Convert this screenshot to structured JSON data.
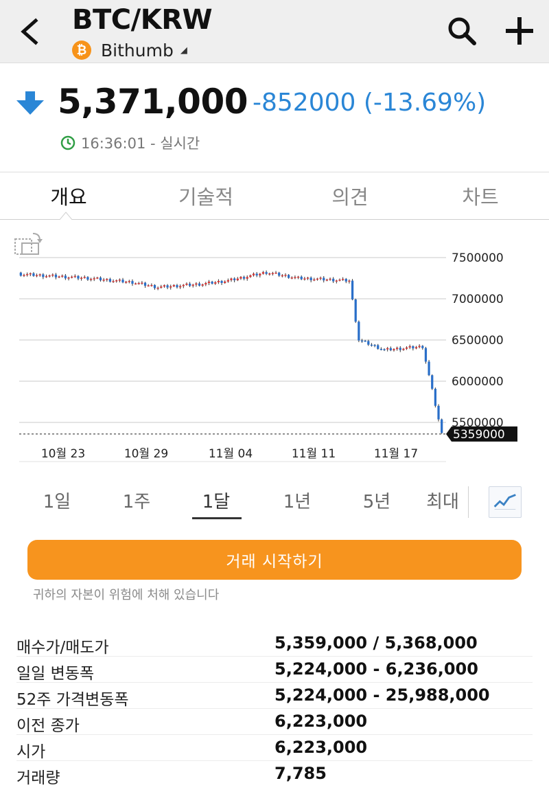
{
  "header": {
    "pair": "BTC/KRW",
    "coin_symbol": "₿",
    "exchange": "Bithumb",
    "icons": [
      "back-icon",
      "search-icon",
      "plus-icon",
      "dropdown-caret-icon"
    ]
  },
  "price": {
    "last": "5,371,000",
    "change": "-852000 (-13.69%)",
    "time": "16:36:01 - 실시간",
    "direction": "down",
    "down_color": "#2a86d6"
  },
  "tabs": [
    {
      "label": "개요",
      "active": true
    },
    {
      "label": "기술적",
      "active": false
    },
    {
      "label": "의견",
      "active": false
    },
    {
      "label": "차트",
      "active": false
    }
  ],
  "chart_data": {
    "type": "candlestick",
    "y_ticks": [
      "7500000",
      "7000000",
      "6500000",
      "6000000",
      "5500000"
    ],
    "x_ticks": [
      "10월 23",
      "10월 29",
      "11월 04",
      "11월 11",
      "11월 17"
    ],
    "ylim": [
      5300000,
      7500000
    ],
    "current_price_label": "5359000",
    "current_price": 5359000,
    "grid": true,
    "up_color": "#d93838",
    "down_color": "#2a6fc9",
    "segments": [
      {
        "from": 7300000,
        "to": 7250000,
        "n": 22
      },
      {
        "from": 7250000,
        "to": 7200000,
        "n": 14
      },
      {
        "from": 7200000,
        "to": 7140000,
        "n": 8
      },
      {
        "from": 7140000,
        "to": 7180000,
        "n": 14
      },
      {
        "from": 7180000,
        "to": 7220000,
        "n": 8
      },
      {
        "from": 7220000,
        "to": 7320000,
        "n": 12
      },
      {
        "from": 7320000,
        "to": 7250000,
        "n": 10
      },
      {
        "from": 7250000,
        "to": 7220000,
        "n": 16
      },
      {
        "from": 7220000,
        "to": 6500000,
        "n": 3
      },
      {
        "from": 6500000,
        "to": 6380000,
        "n": 8
      },
      {
        "from": 6380000,
        "to": 6420000,
        "n": 12
      },
      {
        "from": 6420000,
        "to": 5360000,
        "n": 6
      }
    ]
  },
  "periods": [
    {
      "label": "1일",
      "active": false
    },
    {
      "label": "1주",
      "active": false
    },
    {
      "label": "1달",
      "active": true
    },
    {
      "label": "1년",
      "active": false
    },
    {
      "label": "5년",
      "active": false
    },
    {
      "label": "최대",
      "active": false
    }
  ],
  "trade_button": "거래 시작하기",
  "risk_warning": "귀하의 자본이 위험에 처해 있습니다",
  "stats": [
    {
      "label": "매수가/매도가",
      "value": "5,359,000 / 5,368,000"
    },
    {
      "label": "일일 변동폭",
      "value": "5,224,000 - 6,236,000"
    },
    {
      "label": "52주 가격변동폭",
      "value": "5,224,000 - 25,988,000"
    },
    {
      "label": "이전 종가",
      "value": "6,223,000"
    },
    {
      "label": "시가",
      "value": "6,223,000"
    },
    {
      "label": "거래량",
      "value": "7,785"
    }
  ]
}
